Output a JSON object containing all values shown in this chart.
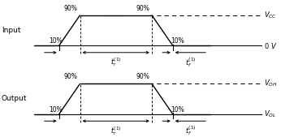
{
  "fig_width": 3.46,
  "fig_height": 1.69,
  "dpi": 100,
  "bg_color": "#ffffff",
  "waveform_color": "#000000",
  "text_color": "#000000",
  "input_label": "Input",
  "output_label": "Output",
  "pct90": "90%",
  "pct10": "10%"
}
